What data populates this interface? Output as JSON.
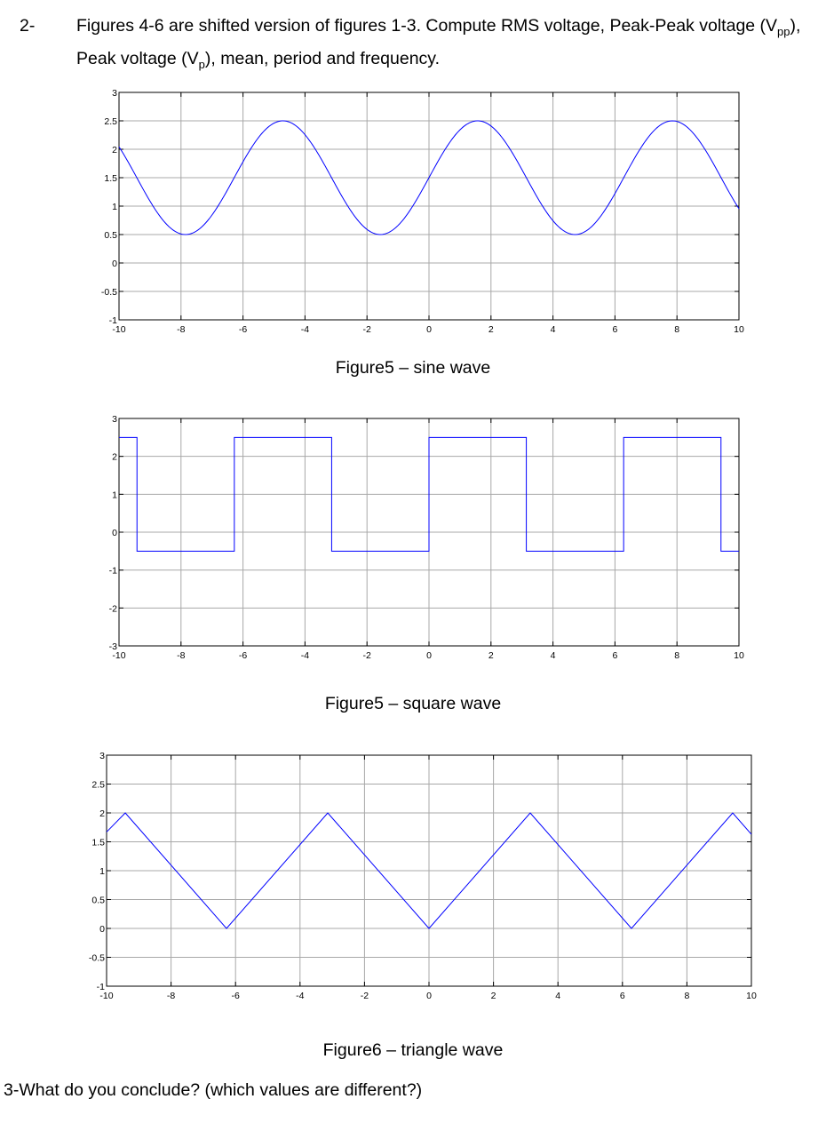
{
  "question2": {
    "number": "2-",
    "text_line1_a": "Figures 4-6 are shifted version of figures 1-3. Compute RMS voltage, Peak-Peak voltage (V",
    "text_line1_sub": "pp",
    "text_line1_b": "),",
    "text_line2_a": "Peak voltage (V",
    "text_line2_sub": "p",
    "text_line2_b": "), mean, period and frequency."
  },
  "figures": [
    {
      "caption": "Figure5 – sine wave"
    },
    {
      "caption": "Figure5 – square wave"
    },
    {
      "caption": "Figure6 – triangle wave"
    }
  ],
  "question3": {
    "text": "3-What do you conclude? (which values are different?)"
  },
  "colors": {
    "trace": "#0000ff",
    "grid": "#a8a8a8",
    "axes": "#000000"
  },
  "chart_data": [
    {
      "type": "line",
      "xlim": [
        -10,
        10
      ],
      "ylim": [
        -1,
        3
      ],
      "xticks": [
        -10,
        -8,
        -6,
        -4,
        -2,
        0,
        2,
        4,
        6,
        8,
        10
      ],
      "yticks": [
        -1,
        -0.5,
        0,
        0.5,
        1,
        1.5,
        2,
        2.5,
        3
      ],
      "grid": true,
      "wave": "sine",
      "offset": 1.5,
      "amplitude": 1,
      "period": 6.2832,
      "peak_x": 1.57,
      "points": [
        [
          -10,
          1.96
        ],
        [
          -7.85,
          0.5
        ],
        [
          -4.71,
          2.5
        ],
        [
          -1.57,
          0.5
        ],
        [
          1.57,
          2.5
        ],
        [
          4.71,
          0.5
        ],
        [
          7.85,
          2.5
        ],
        [
          10,
          1.04
        ]
      ]
    },
    {
      "type": "line",
      "xlim": [
        -10,
        10
      ],
      "ylim": [
        -3,
        3
      ],
      "xticks": [
        -10,
        -8,
        -6,
        -4,
        -2,
        0,
        2,
        4,
        6,
        8,
        10
      ],
      "yticks": [
        -3,
        -2,
        -1,
        0,
        1,
        2,
        3
      ],
      "grid": true,
      "wave": "square",
      "high": 2.5,
      "low": -0.5,
      "period": 6.2832,
      "points": [
        [
          -10,
          2.5
        ],
        [
          -9.42,
          2.5
        ],
        [
          -9.42,
          -0.5
        ],
        [
          -6.28,
          -0.5
        ],
        [
          -6.28,
          2.5
        ],
        [
          -3.14,
          2.5
        ],
        [
          -3.14,
          -0.5
        ],
        [
          0,
          -0.5
        ],
        [
          0,
          2.5
        ],
        [
          3.14,
          2.5
        ],
        [
          3.14,
          -0.5
        ],
        [
          6.28,
          -0.5
        ],
        [
          6.28,
          2.5
        ],
        [
          9.42,
          2.5
        ],
        [
          9.42,
          -0.5
        ],
        [
          10,
          -0.5
        ]
      ]
    },
    {
      "type": "line",
      "xlim": [
        -10,
        10
      ],
      "ylim": [
        -1,
        3
      ],
      "xticks": [
        -10,
        -8,
        -6,
        -4,
        -2,
        0,
        2,
        4,
        6,
        8,
        10
      ],
      "yticks": [
        -1,
        -0.5,
        0,
        0.5,
        1,
        1.5,
        2,
        2.5,
        3
      ],
      "grid": true,
      "wave": "triangle",
      "min": 0,
      "max": 2,
      "period": 6.2832,
      "points": [
        [
          -10,
          1.67
        ],
        [
          -9.42,
          2
        ],
        [
          -6.28,
          0
        ],
        [
          -3.14,
          2
        ],
        [
          0,
          0
        ],
        [
          3.14,
          2
        ],
        [
          6.28,
          0
        ],
        [
          9.42,
          2
        ],
        [
          10,
          1.63
        ]
      ]
    }
  ]
}
